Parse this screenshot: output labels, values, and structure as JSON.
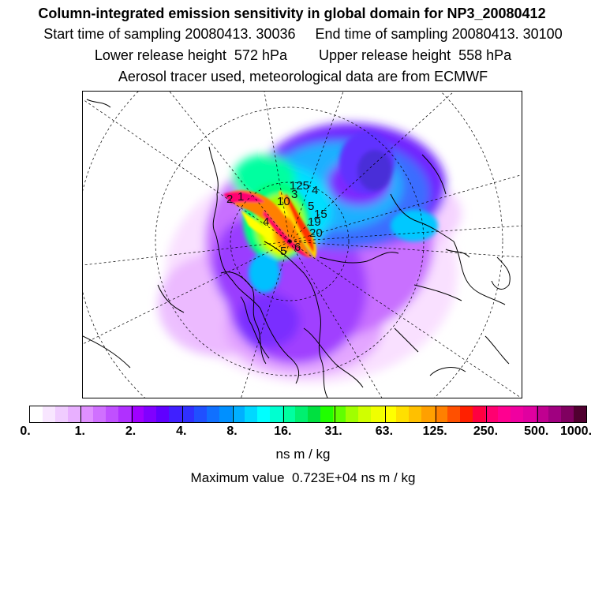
{
  "header": {
    "title": "Column-integrated emission sensitivity in global domain for NP3_20080412",
    "sampling_line": "Start time of sampling 20080413. 30036     End time of sampling 20080413. 30100",
    "release_line": "Lower release height  572 hPa        Upper release height  558 hPa",
    "aerosol_line": "Aerosol tracer used, meteorological data are from ECMWF"
  },
  "map": {
    "projection": "polar-stereographic",
    "site_labels": [
      "2",
      "1",
      "4",
      "3",
      "5",
      "6",
      "10",
      "125",
      "4",
      "5",
      "19",
      "20",
      "15"
    ]
  },
  "colorbar": {
    "colors": [
      "#ffffff",
      "#f8e6ff",
      "#f0ccff",
      "#e8b0ff",
      "#e090ff",
      "#d070ff",
      "#c050ff",
      "#b030ff",
      "#a000ff",
      "#8000ff",
      "#6000ff",
      "#4020ff",
      "#3030ff",
      "#2050ff",
      "#1070ff",
      "#0090ff",
      "#00b0ff",
      "#00d8ff",
      "#00ffff",
      "#00ffd0",
      "#00ffa0",
      "#00f070",
      "#00e040",
      "#20ff00",
      "#60ff00",
      "#a0ff00",
      "#d0ff00",
      "#f0ff00",
      "#ffff00",
      "#ffe000",
      "#ffc000",
      "#ffa000",
      "#ff8000",
      "#ff5000",
      "#ff2000",
      "#ff0040",
      "#ff0070",
      "#ff0090",
      "#f000a0",
      "#e000a0",
      "#c00090",
      "#a00080",
      "#800060",
      "#500030"
    ],
    "tick_labels": [
      "0.",
      "1.",
      "2.",
      "4.",
      "8.",
      "16.",
      "31.",
      "63.",
      "125.",
      "250.",
      "500.",
      "1000."
    ],
    "unit": "ns m / kg"
  },
  "footer": {
    "max_value": "Maximum value  0.723E+04 ns m / kg"
  }
}
